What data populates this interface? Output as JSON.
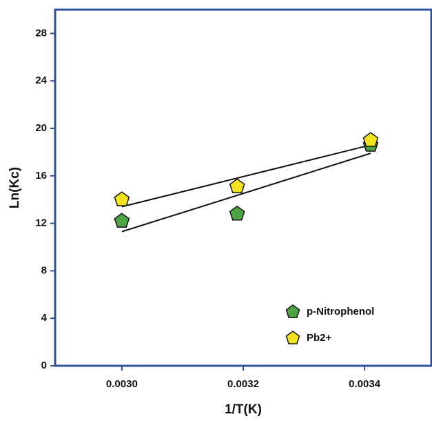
{
  "chart_data": {
    "type": "scatter",
    "x_label": "1/T(K)",
    "y_label": "Ln(Kc)",
    "xlim": [
      0.00289,
      0.00351
    ],
    "ylim": [
      0,
      30
    ],
    "xticks": [
      {
        "value": 0.003,
        "label": "0.0030"
      },
      {
        "value": 0.0032,
        "label": "0.0032"
      },
      {
        "value": 0.0034,
        "label": "0.0034"
      }
    ],
    "yticks": [
      0,
      4,
      8,
      12,
      16,
      20,
      24,
      28
    ],
    "axis_color": "#2f4f9f",
    "series": [
      {
        "name": "p-Nitrophenol",
        "color": "#4ea345",
        "x": [
          0.003,
          0.00319,
          0.00341
        ],
        "values": [
          12.2,
          12.8,
          18.6
        ],
        "fit": {
          "x": [
            0.003,
            0.00341
          ],
          "values": [
            11.3,
            17.9
          ]
        }
      },
      {
        "name": "Pb2+",
        "color": "#f2e31e",
        "x": [
          0.003,
          0.00319,
          0.00341
        ],
        "values": [
          14.0,
          15.1,
          19.0
        ],
        "fit": {
          "x": [
            0.003,
            0.00341
          ],
          "values": [
            13.4,
            18.6
          ]
        }
      }
    ]
  }
}
